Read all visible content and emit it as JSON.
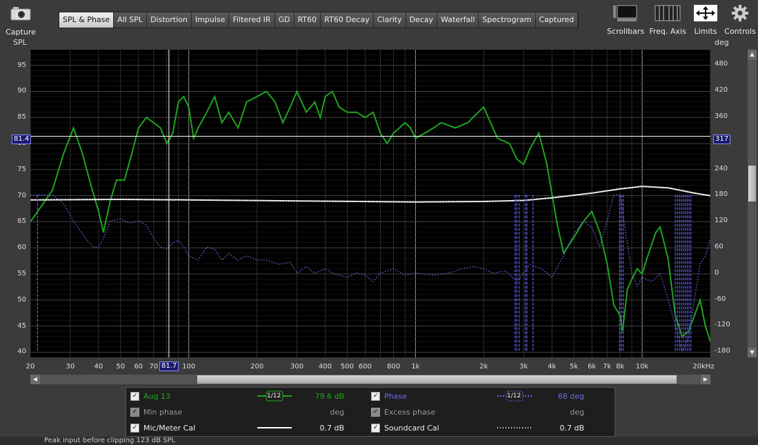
{
  "toolbar": {
    "capture_label": "Capture",
    "tabs": [
      "SPL & Phase",
      "All SPL",
      "Distortion",
      "Impulse",
      "Filtered IR",
      "GD",
      "RT60",
      "RT60 Decay",
      "Clarity",
      "Decay",
      "Waterfall",
      "Spectrogram",
      "Captured"
    ],
    "active_tab": "SPL & Phase",
    "tools": [
      {
        "label": "Scrollbars",
        "icon": "scrollbars-icon"
      },
      {
        "label": "Freq. Axis",
        "icon": "freq-axis-icon"
      },
      {
        "label": "Limits",
        "icon": "limits-icon"
      },
      {
        "label": "Controls",
        "icon": "gear-icon"
      }
    ]
  },
  "axes": {
    "left_unit": "SPL",
    "right_unit": "deg",
    "left_ticks": [
      "95",
      "90",
      "85",
      "80",
      "75",
      "70",
      "65",
      "60",
      "55",
      "50",
      "45",
      "40"
    ],
    "right_ticks": [
      "480",
      "420",
      "360",
      "300",
      "240",
      "180",
      "120",
      "60",
      "0",
      "-60",
      "-120",
      "-180"
    ],
    "x_ticks": [
      "20",
      "30",
      "40",
      "50",
      "60",
      "70",
      "100",
      "200",
      "300",
      "400",
      "500",
      "600",
      "800",
      "1k",
      "2k",
      "3k",
      "4k",
      "5k",
      "6k",
      "7k",
      "8k",
      "10k",
      "20kHz"
    ],
    "cursor_spl": "81.4",
    "cursor_deg": "317",
    "cursor_freq": "81.7"
  },
  "chart_data": {
    "type": "line",
    "xscale": "log",
    "xlim": [
      20,
      20000
    ],
    "ylim": [
      39,
      98
    ],
    "y2lim": [
      -194,
      514
    ],
    "grid": true,
    "cursor": {
      "freq_hz": 81.7,
      "spl_db": 81.4,
      "phase_deg": 317
    },
    "series": [
      {
        "name": "Aug 13",
        "axis": "left",
        "color": "#1fa51f",
        "points": [
          [
            20,
            65
          ],
          [
            25,
            71
          ],
          [
            28,
            78
          ],
          [
            31,
            83
          ],
          [
            34,
            78
          ],
          [
            37,
            72
          ],
          [
            40,
            67
          ],
          [
            42,
            63
          ],
          [
            45,
            69
          ],
          [
            48,
            73
          ],
          [
            52,
            73
          ],
          [
            56,
            78
          ],
          [
            60,
            83
          ],
          [
            65,
            85
          ],
          [
            70,
            84
          ],
          [
            75,
            83
          ],
          [
            80,
            80
          ],
          [
            85,
            82
          ],
          [
            90,
            88
          ],
          [
            95,
            89
          ],
          [
            100,
            87
          ],
          [
            105,
            81
          ],
          [
            110,
            83
          ],
          [
            120,
            86
          ],
          [
            130,
            89
          ],
          [
            140,
            84
          ],
          [
            150,
            86
          ],
          [
            165,
            83
          ],
          [
            180,
            88
          ],
          [
            200,
            89
          ],
          [
            220,
            90
          ],
          [
            240,
            88
          ],
          [
            260,
            84
          ],
          [
            280,
            87
          ],
          [
            300,
            90
          ],
          [
            330,
            86
          ],
          [
            360,
            88
          ],
          [
            380,
            85
          ],
          [
            400,
            89
          ],
          [
            430,
            90
          ],
          [
            460,
            87
          ],
          [
            500,
            86
          ],
          [
            550,
            86
          ],
          [
            600,
            85
          ],
          [
            650,
            86
          ],
          [
            700,
            82
          ],
          [
            750,
            80
          ],
          [
            800,
            82
          ],
          [
            850,
            83
          ],
          [
            900,
            84
          ],
          [
            950,
            83
          ],
          [
            1000,
            81
          ],
          [
            1100,
            82
          ],
          [
            1200,
            83
          ],
          [
            1300,
            84
          ],
          [
            1500,
            83
          ],
          [
            1700,
            84
          ],
          [
            2000,
            87
          ],
          [
            2300,
            81
          ],
          [
            2600,
            80
          ],
          [
            2800,
            77
          ],
          [
            3000,
            76
          ],
          [
            3200,
            79
          ],
          [
            3500,
            82
          ],
          [
            3800,
            76
          ],
          [
            4200,
            65
          ],
          [
            4500,
            59
          ],
          [
            5000,
            62
          ],
          [
            5500,
            65
          ],
          [
            6000,
            67
          ],
          [
            6500,
            63
          ],
          [
            7000,
            57
          ],
          [
            7500,
            49
          ],
          [
            8000,
            47
          ],
          [
            8200,
            44
          ],
          [
            8600,
            52
          ],
          [
            9000,
            54
          ],
          [
            9500,
            56
          ],
          [
            10000,
            55
          ],
          [
            10500,
            58
          ],
          [
            11500,
            63
          ],
          [
            12000,
            64
          ],
          [
            13000,
            58
          ],
          [
            14000,
            47
          ],
          [
            15000,
            43
          ],
          [
            16000,
            44
          ],
          [
            17000,
            47
          ],
          [
            18000,
            50
          ],
          [
            19000,
            45
          ],
          [
            20000,
            42
          ]
        ]
      },
      {
        "name": "Phase",
        "axis": "right",
        "color": "#6a6ae8",
        "points": [
          [
            20,
            180
          ],
          [
            25,
            180
          ],
          [
            28,
            160
          ],
          [
            31,
            120
          ],
          [
            35,
            80
          ],
          [
            38,
            60
          ],
          [
            40,
            60
          ],
          [
            42,
            80
          ],
          [
            45,
            120
          ],
          [
            50,
            125
          ],
          [
            55,
            115
          ],
          [
            60,
            120
          ],
          [
            65,
            110
          ],
          [
            70,
            80
          ],
          [
            75,
            60
          ],
          [
            80,
            55
          ],
          [
            85,
            70
          ],
          [
            90,
            75
          ],
          [
            95,
            60
          ],
          [
            100,
            40
          ],
          [
            110,
            30
          ],
          [
            120,
            60
          ],
          [
            130,
            55
          ],
          [
            140,
            30
          ],
          [
            150,
            45
          ],
          [
            165,
            30
          ],
          [
            180,
            40
          ],
          [
            200,
            30
          ],
          [
            220,
            30
          ],
          [
            250,
            20
          ],
          [
            280,
            25
          ],
          [
            300,
            0
          ],
          [
            330,
            15
          ],
          [
            360,
            0
          ],
          [
            400,
            10
          ],
          [
            430,
            0
          ],
          [
            460,
            -5
          ],
          [
            500,
            -10
          ],
          [
            550,
            0
          ],
          [
            600,
            -5
          ],
          [
            650,
            -20
          ],
          [
            700,
            0
          ],
          [
            800,
            10
          ],
          [
            900,
            -5
          ],
          [
            1000,
            0
          ],
          [
            1200,
            -5
          ],
          [
            1400,
            0
          ],
          [
            1600,
            10
          ],
          [
            1800,
            15
          ],
          [
            2000,
            10
          ],
          [
            2200,
            0
          ],
          [
            2500,
            5
          ],
          [
            2800,
            -20
          ],
          [
            3200,
            20
          ],
          [
            3600,
            10
          ],
          [
            4000,
            -10
          ],
          [
            4500,
            40
          ],
          [
            5000,
            90
          ],
          [
            5500,
            120
          ],
          [
            6000,
            105
          ],
          [
            6500,
            60
          ],
          [
            7000,
            120
          ],
          [
            7500,
            180
          ],
          [
            8000,
            180
          ],
          [
            9000,
            0
          ],
          [
            9500,
            -30
          ],
          [
            10000,
            -10
          ],
          [
            11000,
            -20
          ],
          [
            12000,
            0
          ],
          [
            13000,
            -60
          ],
          [
            14000,
            -120
          ],
          [
            15000,
            -180
          ],
          [
            16000,
            -150
          ],
          [
            17000,
            -60
          ],
          [
            18000,
            20
          ],
          [
            19000,
            40
          ],
          [
            20000,
            80
          ]
        ]
      },
      {
        "name": "Mic/Meter Cal",
        "axis": "left",
        "color": "#ffffff",
        "points": [
          [
            20,
            69.2
          ],
          [
            50,
            69.3
          ],
          [
            100,
            69.2
          ],
          [
            300,
            69.0
          ],
          [
            1000,
            68.8
          ],
          [
            2000,
            68.9
          ],
          [
            3000,
            69.1
          ],
          [
            4000,
            69.6
          ],
          [
            6000,
            70.5
          ],
          [
            8000,
            71.3
          ],
          [
            10000,
            71.8
          ],
          [
            13000,
            71.5
          ],
          [
            17000,
            70.5
          ],
          [
            20000,
            70.0
          ]
        ]
      },
      {
        "name": "Soundcard Cal",
        "axis": "left",
        "color": "#ffffff",
        "dotted": true,
        "points": [
          [
            20,
            69.2
          ],
          [
            50,
            69.3
          ],
          [
            100,
            69.2
          ],
          [
            300,
            69.0
          ],
          [
            1000,
            68.8
          ],
          [
            2000,
            68.9
          ],
          [
            3000,
            69.1
          ],
          [
            4000,
            69.6
          ],
          [
            6000,
            70.5
          ],
          [
            8000,
            71.3
          ],
          [
            10000,
            71.8
          ],
          [
            13000,
            71.5
          ],
          [
            17000,
            70.5
          ],
          [
            20000,
            70.0
          ]
        ]
      }
    ]
  },
  "legend": {
    "rows": [
      {
        "checked": true,
        "dim": false,
        "name": "Aug 13",
        "name_color": "#1fa51f",
        "smoothing": "1/12",
        "value": "79.6 dB",
        "value_color": "#1fa51f",
        "name2": "Phase",
        "name2_color": "#6a6ae8",
        "smoothing2": "1/12",
        "value2": "68 deg",
        "value2_color": "#6a6ae8"
      },
      {
        "checked": true,
        "dim": true,
        "name": "Min phase",
        "name_color": "#999999",
        "value": "deg",
        "value_color": "#999999",
        "name2": "Excess phase",
        "name2_color": "#999999",
        "value2": "deg",
        "value2_color": "#999999"
      },
      {
        "checked": true,
        "dim": false,
        "name": "Mic/Meter Cal",
        "name_color": "#eeeeee",
        "value": "0.7 dB",
        "value_color": "#eeeeee",
        "name2": "Soundcard Cal",
        "name2_color": "#eeeeee",
        "value2": "0.7 dB",
        "value2_color": "#eeeeee"
      }
    ]
  },
  "status": {
    "text": "Peak input before clipping 123 dB SPL"
  }
}
